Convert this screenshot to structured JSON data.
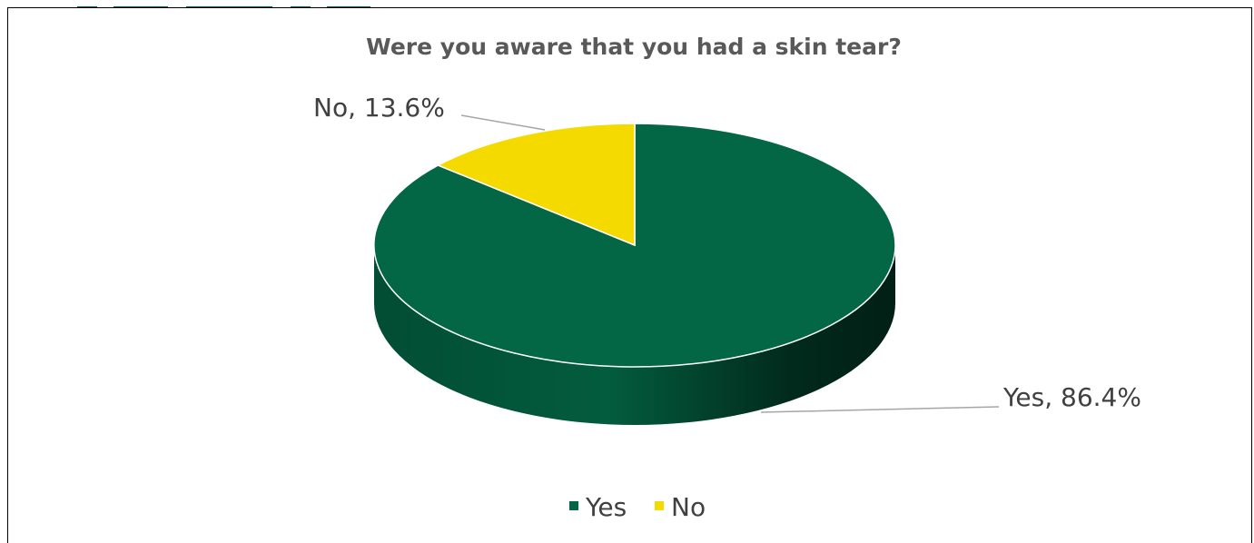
{
  "chart_data": {
    "type": "pie",
    "title": "Were you aware that you had a skin tear?",
    "slices": [
      {
        "label": "Yes",
        "value": 86.4,
        "data_label": "Yes, 86.4%",
        "color": "#036645"
      },
      {
        "label": "No",
        "value": 13.6,
        "data_label": "No, 13.6%",
        "color": "#F5DA00"
      }
    ],
    "legend": {
      "position": "bottom",
      "entries": [
        "Yes",
        "No"
      ]
    },
    "style": "3d"
  },
  "colors": {
    "header_strip": "#036645",
    "frame_border": "#000000",
    "leader_line": "#A6A6A6"
  }
}
